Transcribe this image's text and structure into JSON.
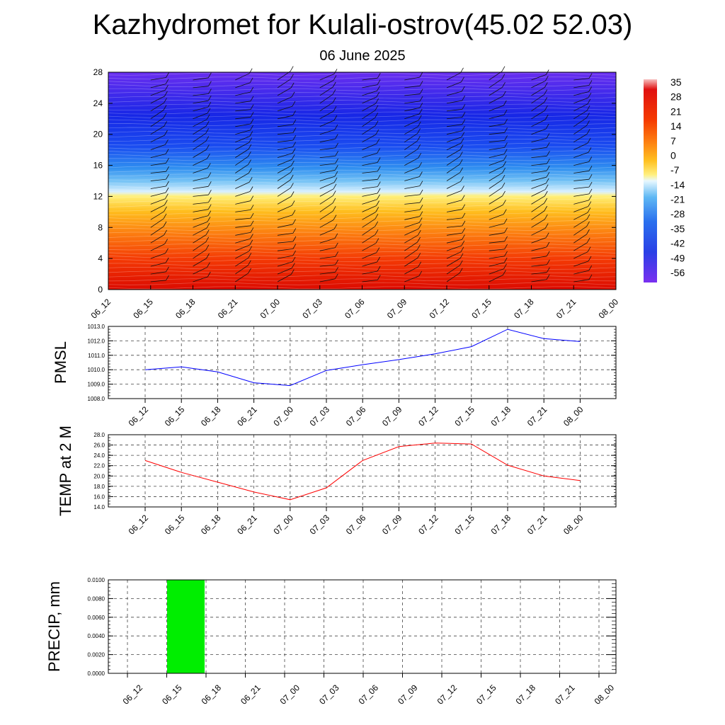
{
  "title": "Kazhydromet for Kulali-ostrov(45.02 52.03)",
  "subtitle": "06 June 2025",
  "time_labels": [
    "06_12",
    "06_15",
    "06_18",
    "06_21",
    "07_00",
    "07_03",
    "07_06",
    "07_09",
    "07_12",
    "07_15",
    "07_18",
    "07_21",
    "08_00"
  ],
  "colors": {
    "pmsl_line": "#0000ff",
    "temp_line": "#ff0000",
    "precip_bar": "#00ee00"
  },
  "chart_data": [
    {
      "type": "heatmap",
      "title": "",
      "x": [
        "06_12",
        "06_15",
        "06_18",
        "06_21",
        "07_00",
        "07_03",
        "07_06",
        "07_09",
        "07_12",
        "07_15",
        "07_18",
        "07_21",
        "08_00"
      ],
      "yticks": [
        0,
        4,
        8,
        12,
        16,
        20,
        24,
        28
      ],
      "ylim": [
        0,
        28
      ],
      "colorbar_labels": [
        "35",
        "28",
        "21",
        "14",
        "7",
        "0",
        "-7",
        "-14",
        "-21",
        "-28",
        "-35",
        "-42",
        "-49",
        "-56"
      ],
      "colorbar_palette": "blue-white-yellow-red",
      "wind_barbs": true,
      "y_temperature_profile": [
        {
          "y": 0,
          "value": 24
        },
        {
          "y": 4,
          "value": 17
        },
        {
          "y": 8,
          "value": 9
        },
        {
          "y": 11,
          "value": 0
        },
        {
          "y": 12.5,
          "value": -12
        },
        {
          "y": 15,
          "value": -30
        },
        {
          "y": 18,
          "value": -44
        },
        {
          "y": 22,
          "value": -54
        },
        {
          "y": 28,
          "value": -60
        }
      ]
    },
    {
      "type": "line",
      "ylabel": "PMSL",
      "x": [
        "06_12",
        "06_15",
        "06_18",
        "06_21",
        "07_00",
        "07_03",
        "07_06",
        "07_09",
        "07_12",
        "07_15",
        "07_18",
        "07_21",
        "08_00"
      ],
      "series": [
        {
          "values": [
            1010.0,
            1010.2,
            1009.85,
            1009.1,
            1008.9,
            1009.95,
            1010.35,
            1010.7,
            1011.1,
            1011.6,
            1012.8,
            1012.15,
            1011.95
          ]
        }
      ],
      "ylim": [
        1008.0,
        1013.0
      ],
      "yticks": [
        "1008.0",
        "1009.0",
        "1010.0",
        "1011.0",
        "1012.0",
        "1013.0"
      ],
      "grid": true
    },
    {
      "type": "line",
      "ylabel": "TEMP at 2 M",
      "x": [
        "06_12",
        "06_15",
        "06_18",
        "06_21",
        "07_00",
        "07_03",
        "07_06",
        "07_09",
        "07_12",
        "07_15",
        "07_18",
        "07_21",
        "08_00"
      ],
      "series": [
        {
          "values": [
            23.0,
            20.7,
            18.8,
            16.9,
            15.4,
            17.7,
            23.0,
            25.7,
            26.4,
            26.2,
            22.1,
            20.0,
            19.1
          ]
        }
      ],
      "ylim": [
        14.0,
        28.0
      ],
      "yticks": [
        "14.0",
        "16.0",
        "18.0",
        "20.0",
        "22.0",
        "24.0",
        "26.0",
        "28.0"
      ],
      "grid": true
    },
    {
      "type": "bar",
      "ylabel": "PRECIP, mm",
      "categories": [
        "06_12",
        "06_15",
        "06_18",
        "06_21",
        "07_00",
        "07_03",
        "07_06",
        "07_09",
        "07_12",
        "07_15",
        "07_18",
        "07_21",
        "08_00"
      ],
      "values": [
        0,
        0.01,
        0,
        0,
        0,
        0,
        0,
        0,
        0,
        0,
        0,
        0,
        0
      ],
      "ylim": [
        0.0,
        0.01
      ],
      "yticks": [
        "0.0000",
        "0.0020",
        "0.0040",
        "0.0060",
        "0.0080",
        "0.0100"
      ],
      "grid": true
    }
  ]
}
